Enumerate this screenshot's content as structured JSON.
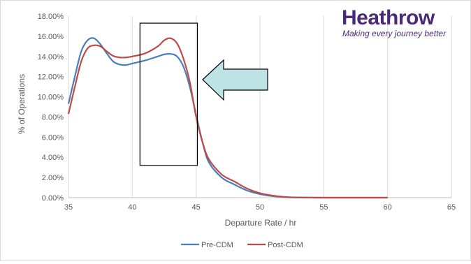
{
  "logo": {
    "name": "Heathrow",
    "tagline": "Making every journey better",
    "color": "#4b2a77"
  },
  "chart_data": {
    "type": "line",
    "xlabel": "Departure Rate / hr",
    "ylabel": "% of Operations",
    "xlim": [
      35,
      65
    ],
    "ylim": [
      0,
      18
    ],
    "x_ticks": [
      "35",
      "40",
      "45",
      "50",
      "55",
      "60",
      "65"
    ],
    "y_ticks": [
      "0.00%",
      "2.00%",
      "4.00%",
      "6.00%",
      "8.00%",
      "10.00%",
      "12.00%",
      "14.00%",
      "16.00%",
      "18.00%"
    ],
    "grid": "vertical",
    "legend": "bottom",
    "series": [
      {
        "name": "Pre-CDM",
        "color": "#4a7ebb",
        "x": [
          35,
          35.5,
          36,
          36.5,
          37,
          37.5,
          38,
          38.5,
          39,
          39.5,
          40,
          41,
          42,
          42.5,
          43,
          43.5,
          44,
          44.5,
          45,
          45.5,
          46,
          47,
          48,
          49,
          50,
          51,
          52,
          53,
          55,
          60
        ],
        "y": [
          9.3,
          12.0,
          14.5,
          15.6,
          15.8,
          15.2,
          14.3,
          13.5,
          13.2,
          13.15,
          13.3,
          13.6,
          14.0,
          14.2,
          14.25,
          14.0,
          13.0,
          11.0,
          8.2,
          5.5,
          3.5,
          2.0,
          1.3,
          0.7,
          0.35,
          0.15,
          0.05,
          0.01,
          0.0,
          0.0
        ]
      },
      {
        "name": "Post-CDM",
        "color": "#be4b48",
        "x": [
          35,
          35.5,
          36,
          36.5,
          37,
          37.5,
          38,
          38.5,
          39,
          39.5,
          40,
          41,
          42,
          42.5,
          43,
          43.5,
          44,
          44.5,
          45,
          45.5,
          46,
          47,
          48,
          49,
          50,
          51,
          52,
          53,
          55,
          60
        ],
        "y": [
          8.3,
          11.0,
          13.5,
          14.8,
          15.1,
          15.0,
          14.5,
          14.05,
          13.9,
          13.9,
          14.0,
          14.3,
          15.0,
          15.6,
          15.8,
          15.3,
          13.8,
          11.5,
          8.0,
          5.5,
          3.8,
          2.3,
          1.6,
          0.9,
          0.45,
          0.2,
          0.06,
          0.02,
          0.0,
          0.0
        ]
      }
    ],
    "annotations": [
      {
        "type": "rectangle",
        "x_range": [
          40.6,
          45.1
        ],
        "y_range": [
          3.2,
          17.3
        ]
      },
      {
        "type": "arrow",
        "direction": "left",
        "color": "#bfe3e4"
      }
    ]
  }
}
